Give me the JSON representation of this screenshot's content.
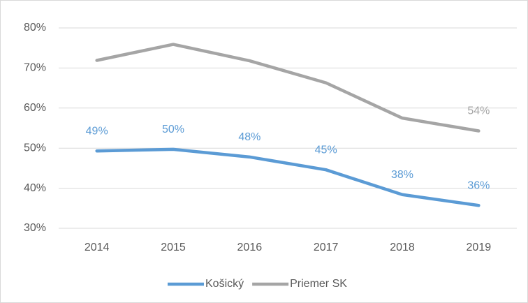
{
  "chart_data": {
    "type": "line",
    "categories": [
      "2014",
      "2015",
      "2016",
      "2017",
      "2018",
      "2019"
    ],
    "series": [
      {
        "name": "Košický",
        "color": "#5b9bd5",
        "values": [
          49.3,
          49.7,
          47.8,
          44.6,
          38.4,
          35.7
        ],
        "value_labels": [
          "49%",
          "50%",
          "48%",
          "45%",
          "38%",
          "36%"
        ]
      },
      {
        "name": "Priemer SK",
        "color": "#a5a5a5",
        "values": [
          71.9,
          75.9,
          71.8,
          66.3,
          57.5,
          54.3
        ],
        "value_labels": [
          null,
          null,
          null,
          null,
          null,
          "54%"
        ]
      }
    ],
    "ylim": [
      30,
      80
    ],
    "yticks": [
      {
        "value": 30,
        "label": "30%"
      },
      {
        "value": 40,
        "label": "40%"
      },
      {
        "value": 50,
        "label": "50%"
      },
      {
        "value": 60,
        "label": "60%"
      },
      {
        "value": 70,
        "label": "70%"
      },
      {
        "value": 80,
        "label": "80%"
      }
    ],
    "grid": true,
    "legend": "bottom"
  }
}
